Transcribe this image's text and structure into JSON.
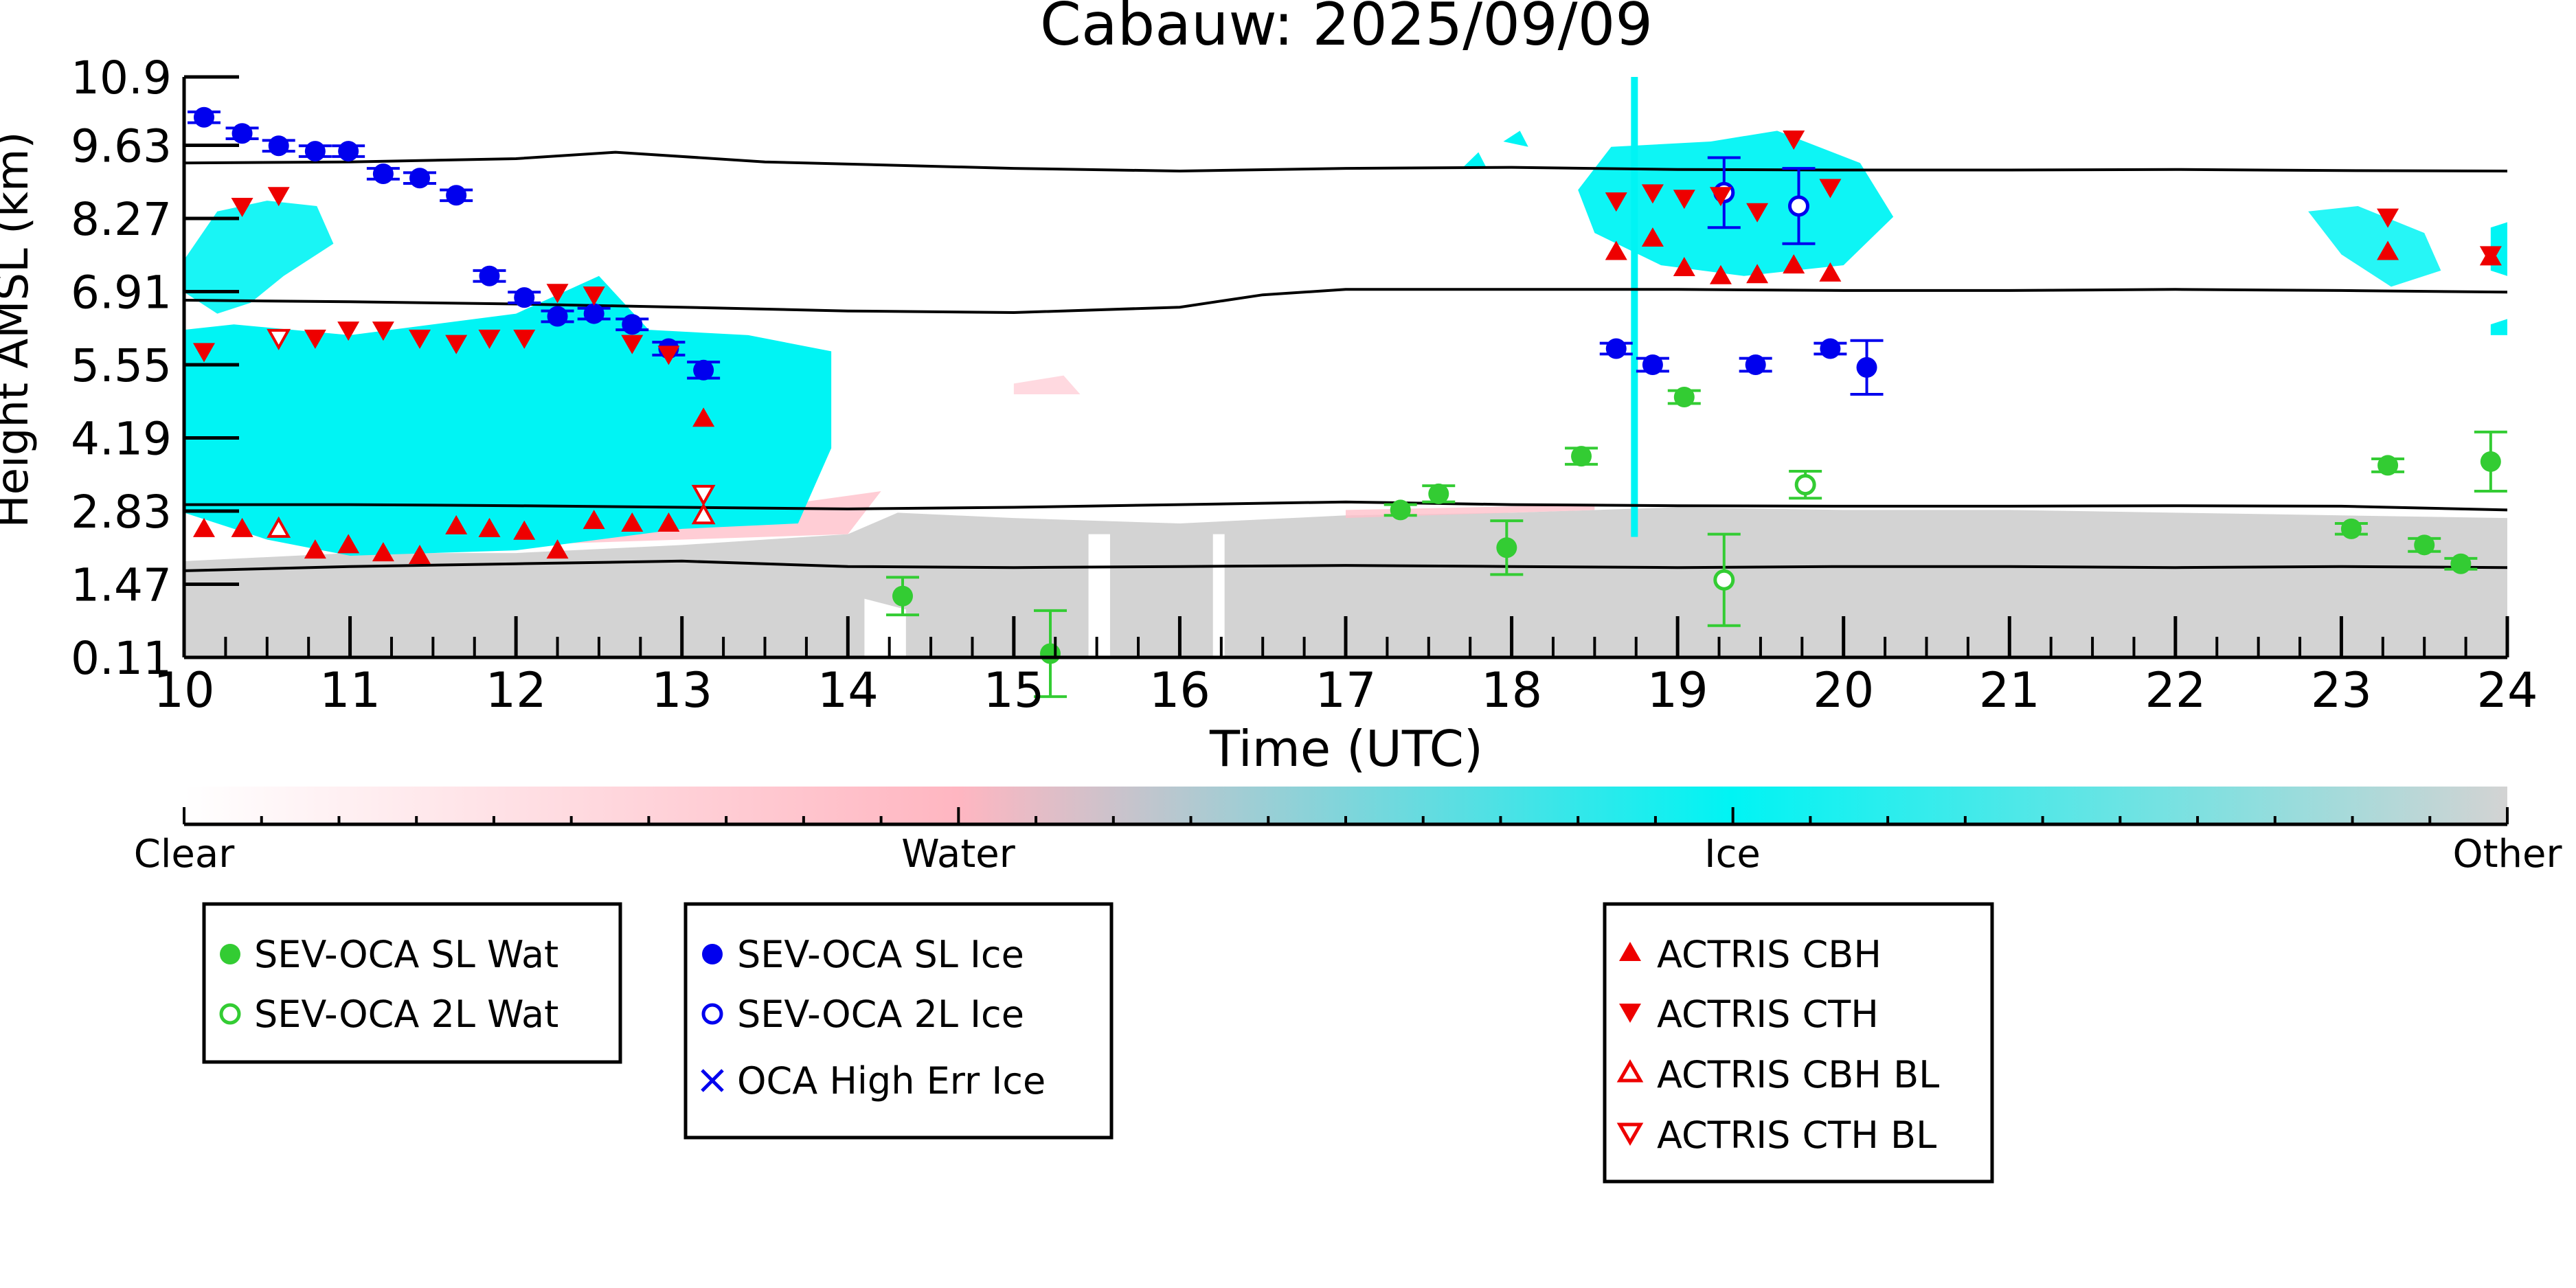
{
  "chart_data": {
    "type": "scatter",
    "title": "Cabauw: 2025/09/09",
    "xlabel": "Time (UTC)",
    "ylabel": "Height AMSL (km)",
    "xlim": [
      10,
      24
    ],
    "ylim": [
      0.11,
      10.9
    ],
    "xticks": [
      "10",
      "11",
      "12",
      "13",
      "14",
      "15",
      "16",
      "17",
      "18",
      "19",
      "20",
      "21",
      "22",
      "23",
      "24"
    ],
    "yticks": [
      "0.11",
      "1.47",
      "2.83",
      "4.19",
      "5.55",
      "6.91",
      "8.27",
      "9.63",
      "10.9"
    ],
    "colorbar": {
      "labels": [
        "Clear",
        "Water",
        "Ice",
        "Other"
      ],
      "colors": [
        "#ffffff",
        "#ffb6c1",
        "#00ffff",
        "#d3d3d3"
      ]
    },
    "colors": {
      "water": "#33cc33",
      "ice": "#0000ee",
      "actris": "#ee0000",
      "mask_ice": "#00f4f4",
      "mask_other": "#d3d3d3",
      "mask_water": "#ffc0cb"
    },
    "background_lines": [
      {
        "x": [
          10,
          11,
          12,
          12.6,
          13.5,
          15,
          16,
          17,
          18,
          19,
          20,
          21,
          22,
          23,
          24
        ],
        "y": [
          9.3,
          9.32,
          9.38,
          9.5,
          9.32,
          9.2,
          9.15,
          9.2,
          9.22,
          9.18,
          9.17,
          9.17,
          9.18,
          9.16,
          9.15
        ]
      },
      {
        "x": [
          10,
          11,
          12,
          13,
          14,
          15,
          16,
          16.5,
          17,
          18,
          19,
          20,
          21,
          22,
          23,
          24
        ],
        "y": [
          6.75,
          6.72,
          6.68,
          6.62,
          6.55,
          6.52,
          6.62,
          6.85,
          6.95,
          6.95,
          6.95,
          6.93,
          6.93,
          6.95,
          6.93,
          6.9
        ]
      },
      {
        "x": [
          10,
          11,
          12,
          13,
          14,
          15,
          16,
          17,
          18,
          19,
          20,
          21,
          22,
          23,
          24
        ],
        "y": [
          2.95,
          2.95,
          2.93,
          2.9,
          2.87,
          2.9,
          2.95,
          3.0,
          2.95,
          2.93,
          2.92,
          2.92,
          2.93,
          2.92,
          2.85
        ]
      },
      {
        "x": [
          10,
          11,
          12,
          13,
          14,
          15,
          16,
          17,
          18,
          19,
          20,
          21,
          22,
          23,
          24
        ],
        "y": [
          1.72,
          1.8,
          1.85,
          1.9,
          1.8,
          1.78,
          1.8,
          1.82,
          1.8,
          1.78,
          1.8,
          1.8,
          1.78,
          1.8,
          1.78
        ]
      }
    ],
    "series": [
      {
        "name": "SEV-OCA SL Wat",
        "points": [
          [
            14.33,
            1.25,
            0.35
          ],
          [
            15.22,
            0.18,
            0.8
          ],
          [
            17.33,
            2.85,
            0.1
          ],
          [
            17.56,
            3.15,
            0.15
          ],
          [
            17.97,
            2.15,
            0.5
          ],
          [
            18.42,
            3.85,
            0.15
          ],
          [
            19.04,
            4.95,
            0.12
          ],
          [
            23.06,
            2.5,
            0.1
          ],
          [
            23.28,
            3.68,
            0.12
          ],
          [
            23.5,
            2.2,
            0.12
          ],
          [
            23.72,
            1.85,
            0.1
          ],
          [
            23.9,
            3.75,
            0.55
          ]
        ]
      },
      {
        "name": "SEV-OCA 2L Wat",
        "points": [
          [
            19.28,
            1.55,
            0.85
          ],
          [
            19.77,
            3.32,
            0.25
          ]
        ]
      },
      {
        "name": "SEV-OCA SL Ice",
        "points": [
          [
            10.12,
            10.15,
            0.1
          ],
          [
            10.35,
            9.85,
            0.1
          ],
          [
            10.57,
            9.62,
            0.1
          ],
          [
            10.79,
            9.52,
            0.1
          ],
          [
            10.99,
            9.52,
            0.1
          ],
          [
            11.2,
            9.1,
            0.1
          ],
          [
            11.42,
            9.02,
            0.1
          ],
          [
            11.64,
            8.7,
            0.1
          ],
          [
            11.84,
            7.2,
            0.1
          ],
          [
            12.05,
            6.8,
            0.1
          ],
          [
            12.25,
            6.45,
            0.1
          ],
          [
            12.47,
            6.5,
            0.1
          ],
          [
            12.7,
            6.3,
            0.1
          ],
          [
            12.92,
            5.85,
            0.12
          ],
          [
            13.13,
            5.45,
            0.15
          ],
          [
            18.63,
            5.85,
            0.1
          ],
          [
            18.85,
            5.55,
            0.12
          ],
          [
            19.47,
            5.55,
            0.12
          ],
          [
            19.92,
            5.85,
            0.1
          ],
          [
            20.14,
            5.5,
            0.5
          ]
        ]
      },
      {
        "name": "SEV-OCA 2L Ice",
        "points": [
          [
            19.28,
            8.75,
            0.65
          ],
          [
            19.73,
            8.5,
            0.7
          ]
        ]
      },
      {
        "name": "OCA High Err Ice",
        "points": []
      },
      {
        "name": "ACTRIS CBH",
        "points": [
          [
            10.12,
            2.5
          ],
          [
            10.35,
            2.5
          ],
          [
            10.79,
            2.1
          ],
          [
            10.99,
            2.2
          ],
          [
            11.2,
            2.05
          ],
          [
            11.42,
            2.0
          ],
          [
            11.64,
            2.55
          ],
          [
            11.84,
            2.5
          ],
          [
            12.05,
            2.45
          ],
          [
            12.25,
            2.1
          ],
          [
            12.47,
            2.65
          ],
          [
            12.7,
            2.6
          ],
          [
            12.92,
            2.6
          ],
          [
            13.13,
            4.55
          ],
          [
            18.63,
            7.65
          ],
          [
            18.85,
            7.9
          ],
          [
            19.04,
            7.35
          ],
          [
            19.26,
            7.2
          ],
          [
            19.48,
            7.22
          ],
          [
            19.7,
            7.4
          ],
          [
            19.92,
            7.25
          ],
          [
            23.28,
            7.65
          ],
          [
            23.9,
            7.55
          ]
        ]
      },
      {
        "name": "ACTRIS CTH",
        "points": [
          [
            10.12,
            5.8
          ],
          [
            10.35,
            8.5
          ],
          [
            10.57,
            8.7
          ],
          [
            10.79,
            6.05
          ],
          [
            10.99,
            6.2
          ],
          [
            11.2,
            6.2
          ],
          [
            11.42,
            6.05
          ],
          [
            11.64,
            5.95
          ],
          [
            11.84,
            6.05
          ],
          [
            12.05,
            6.05
          ],
          [
            12.25,
            6.9
          ],
          [
            12.47,
            6.85
          ],
          [
            12.7,
            5.95
          ],
          [
            12.92,
            5.75
          ],
          [
            18.63,
            8.6
          ],
          [
            18.85,
            8.75
          ],
          [
            19.04,
            8.65
          ],
          [
            19.26,
            8.7
          ],
          [
            19.48,
            8.4
          ],
          [
            19.7,
            9.75
          ],
          [
            19.92,
            8.85
          ],
          [
            23.28,
            8.3
          ],
          [
            23.9,
            7.6
          ]
        ]
      },
      {
        "name": "ACTRIS CBH BL",
        "points": [
          [
            10.57,
            2.5
          ],
          [
            13.13,
            2.75
          ]
        ]
      },
      {
        "name": "ACTRIS CTH BL",
        "points": [
          [
            10.57,
            6.05
          ],
          [
            13.13,
            3.15
          ]
        ]
      }
    ],
    "legend_groups": [
      [
        "SEV-OCA SL Wat",
        "SEV-OCA 2L Wat"
      ],
      [
        "SEV-OCA SL Ice",
        "SEV-OCA 2L Ice",
        "OCA High Err Ice"
      ],
      [
        "ACTRIS CBH",
        "ACTRIS CTH",
        "ACTRIS CBH BL",
        "ACTRIS CTH BL"
      ]
    ]
  }
}
